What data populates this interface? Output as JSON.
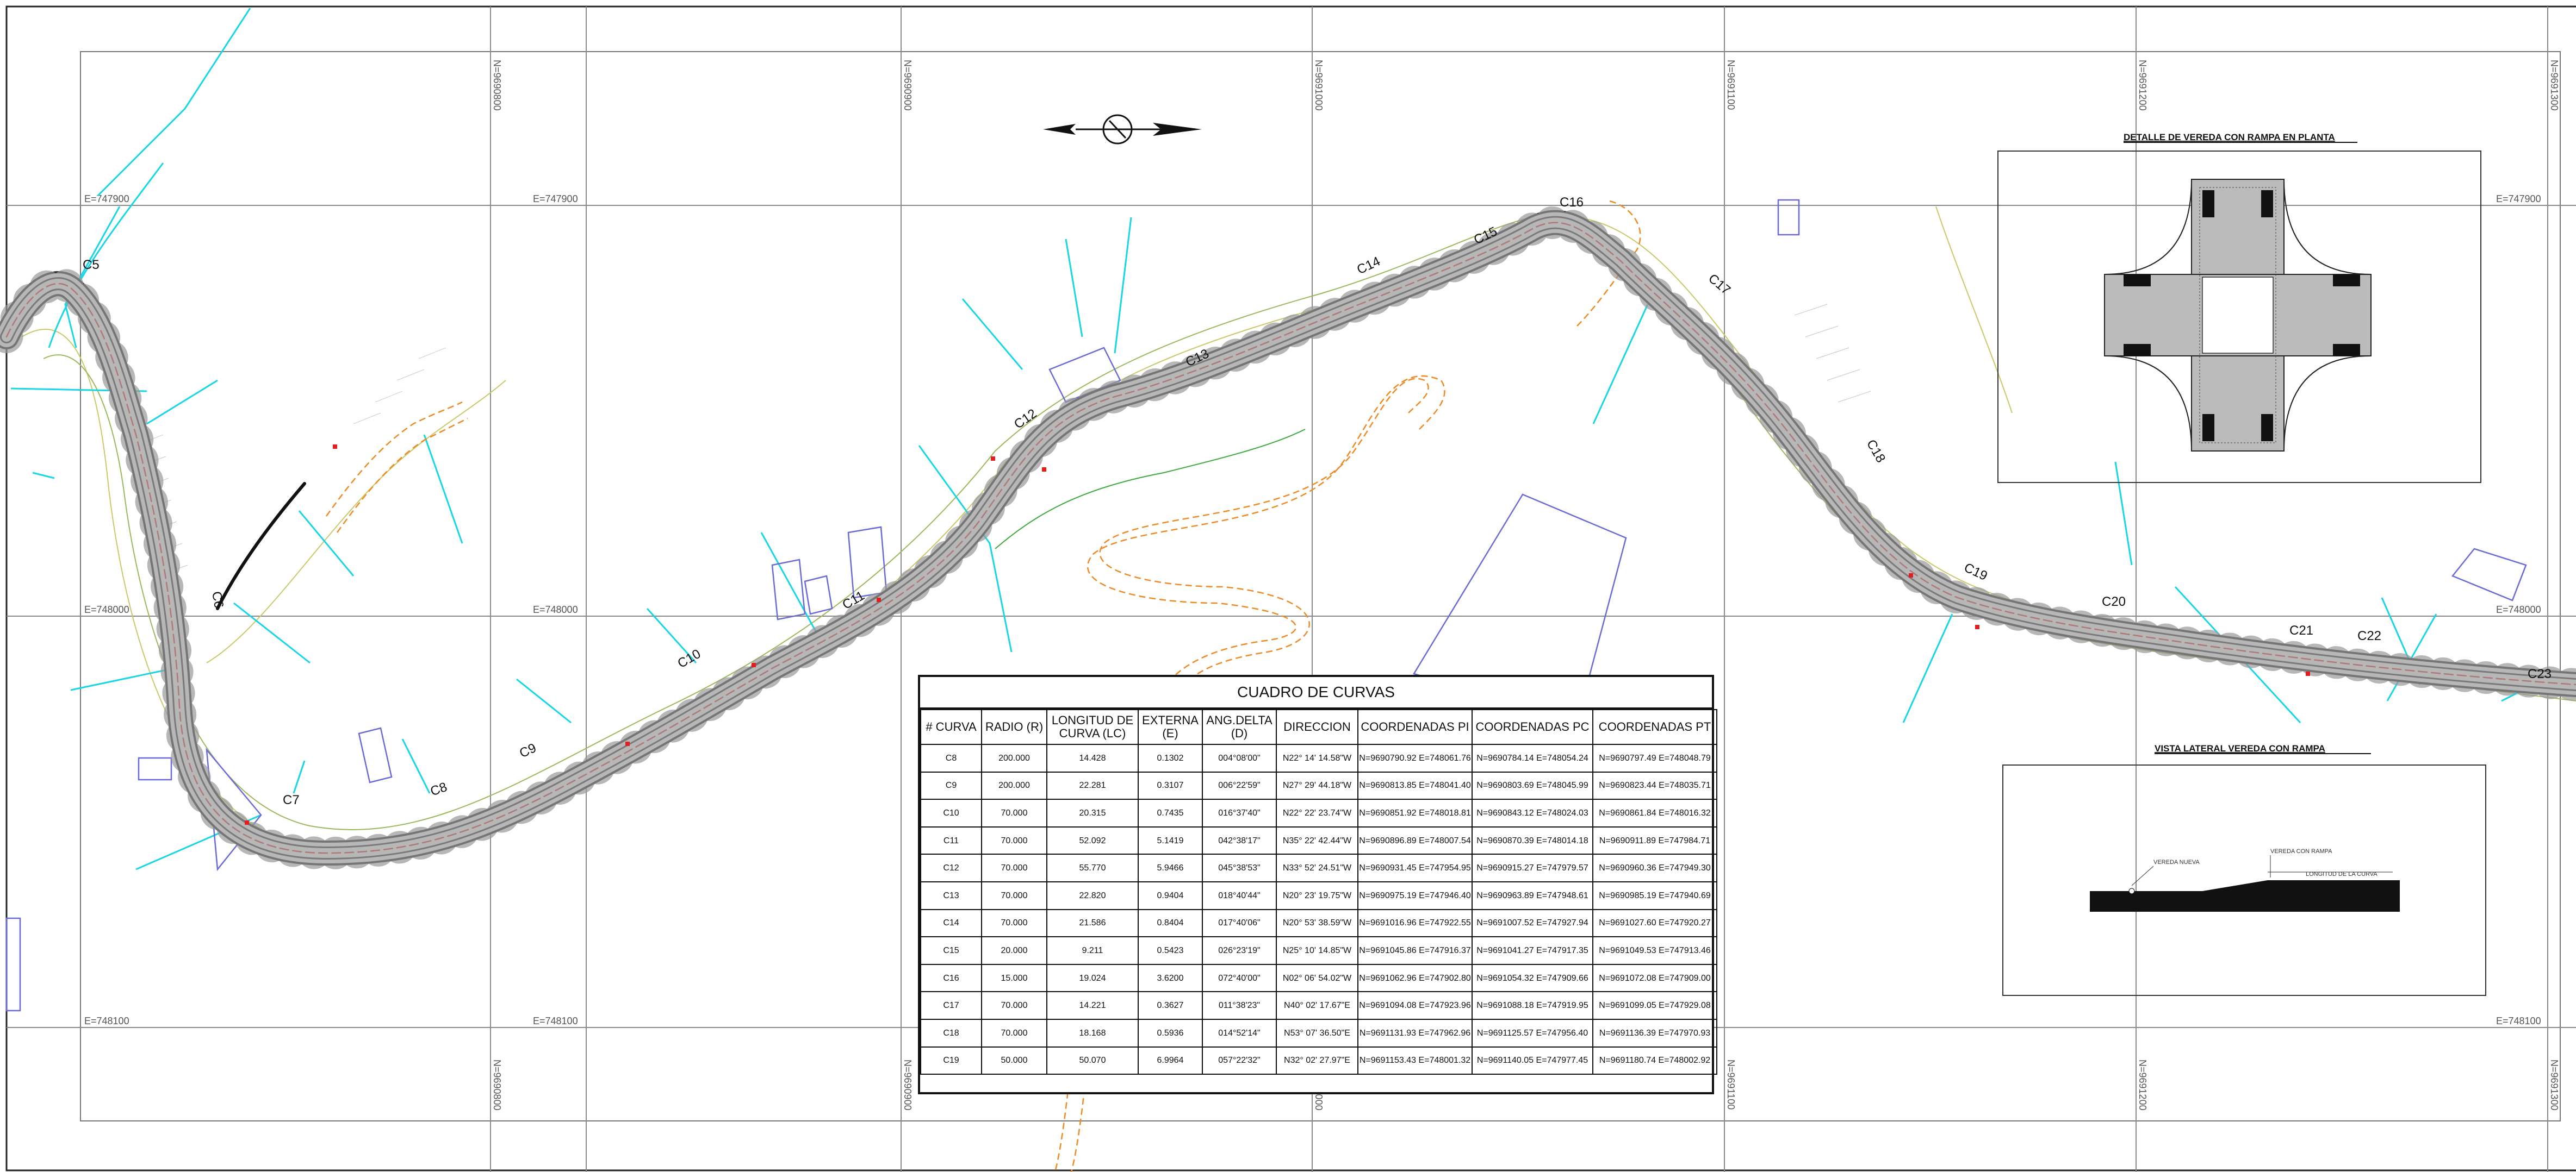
{
  "grid": {
    "north_labels": [
      "N=9690800",
      "N=9690900",
      "N=9691000",
      "N=9691100",
      "N=9691200",
      "N=9691300"
    ],
    "east_labels": [
      "E=747900",
      "E=748000",
      "E=748100"
    ]
  },
  "curve_labels": [
    "C5",
    "C6",
    "C7",
    "C8",
    "C9",
    "C10",
    "C11",
    "C12",
    "C13",
    "C14",
    "C15",
    "C16",
    "C17",
    "C18",
    "C19",
    "C20",
    "C21",
    "C22",
    "C23"
  ],
  "detail_plan": {
    "title": "DETALLE DE VEREDA CON RAMPA EN PLANTA"
  },
  "detail_side": {
    "title": "VISTA LATERAL VEREDA CON RAMPA",
    "notes": [
      "VEREDA NUEVA",
      "VEREDA CON RAMPA",
      "LONGITUD DE LA CURVA"
    ]
  },
  "curve_table": {
    "title": "CUADRO DE CURVAS",
    "headers": [
      "# CURVA",
      "RADIO (R)",
      "LONGITUD DE CURVA (LC)",
      "EXTERNA (E)",
      "ANG.DELTA (D)",
      "DIRECCION",
      "COORDENADAS PI",
      "COORDENADAS PC",
      "COORDENADAS PT"
    ],
    "rows": [
      [
        "C8",
        "200.000",
        "14.428",
        "0.1302",
        "004°08'00\"",
        "N22° 14' 14.58\"W",
        "N=9690790.92 E=748061.76",
        "N=9690784.14 E=748054.24",
        "N=9690797.49 E=748048.79"
      ],
      [
        "C9",
        "200.000",
        "22.281",
        "0.3107",
        "006°22'59\"",
        "N27° 29' 44.18\"W",
        "N=9690813.85 E=748041.40",
        "N=9690803.69 E=748045.99",
        "N=9690823.44 E=748035.71"
      ],
      [
        "C10",
        "70.000",
        "20.315",
        "0.7435",
        "016°37'40\"",
        "N22° 22' 23.74\"W",
        "N=9690851.92 E=748018.81",
        "N=9690843.12 E=748024.03",
        "N=9690861.84 E=748016.32"
      ],
      [
        "C11",
        "70.000",
        "52.092",
        "5.1419",
        "042°38'17\"",
        "N35° 22' 42.44\"W",
        "N=9690896.89 E=748007.54",
        "N=9690870.39 E=748014.18",
        "N=9690911.89 E=747984.71"
      ],
      [
        "C12",
        "70.000",
        "55.770",
        "5.9466",
        "045°38'53\"",
        "N33° 52' 24.51\"W",
        "N=9690931.45 E=747954.95",
        "N=9690915.27 E=747979.57",
        "N=9690960.36 E=747949.30"
      ],
      [
        "C13",
        "70.000",
        "22.820",
        "0.9404",
        "018°40'44\"",
        "N20° 23' 19.75\"W",
        "N=9690975.19 E=747946.40",
        "N=9690963.89 E=747948.61",
        "N=9690985.19 E=747940.69"
      ],
      [
        "C14",
        "70.000",
        "21.586",
        "0.8404",
        "017°40'06\"",
        "N20° 53' 38.59\"W",
        "N=9691016.96 E=747922.55",
        "N=9691007.52 E=747927.94",
        "N=9691027.60 E=747920.27"
      ],
      [
        "C15",
        "20.000",
        "9.211",
        "0.5423",
        "026°23'19\"",
        "N25° 10' 14.85\"W",
        "N=9691045.86 E=747916.37",
        "N=9691041.27 E=747917.35",
        "N=9691049.53 E=747913.46"
      ],
      [
        "C16",
        "15.000",
        "19.024",
        "3.6200",
        "072°40'00\"",
        "N02° 06' 54.02\"W",
        "N=9691062.96 E=747902.80",
        "N=9691054.32 E=747909.66",
        "N=9691072.08 E=747909.00"
      ],
      [
        "C17",
        "70.000",
        "14.221",
        "0.3627",
        "011°38'23\"",
        "N40° 02' 17.67\"E",
        "N=9691094.08 E=747923.96",
        "N=9691088.18 E=747919.95",
        "N=9691099.05 E=747929.08"
      ],
      [
        "C18",
        "70.000",
        "18.168",
        "0.5936",
        "014°52'14\"",
        "N53° 07' 36.50\"E",
        "N=9691131.93 E=747962.96",
        "N=9691125.57 E=747956.40",
        "N=9691136.39 E=747970.93"
      ],
      [
        "C19",
        "50.000",
        "50.070",
        "6.9964",
        "057°22'32\"",
        "N32° 02' 27.97\"E",
        "N=9691153.43 E=748001.32",
        "N=9691140.05 E=747977.45",
        "N=9691180.74 E=748002.92"
      ]
    ]
  }
}
